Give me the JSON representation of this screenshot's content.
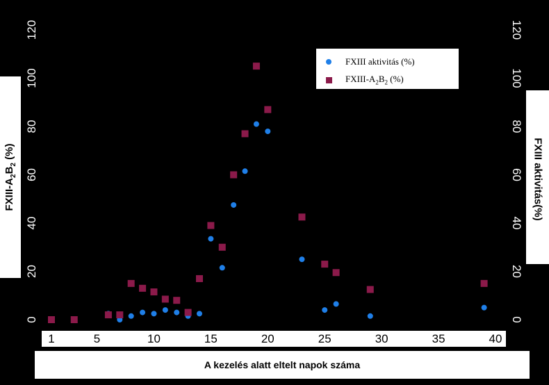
{
  "chart_data": {
    "type": "scatter",
    "title": "",
    "xlabel": "A kezelés alatt eltelt napok száma",
    "ylabel_left": {
      "main": "FXIII-A",
      "sub1": "2",
      "mid": "B",
      "sub2": "2",
      "end": " (%)"
    },
    "ylabel_right": "FXIII aktivitás(%)",
    "x_ticks": [
      "1",
      "5",
      "10",
      "15",
      "20",
      "25",
      "30",
      "35",
      "40"
    ],
    "x_tick_values": [
      1,
      5,
      10,
      15,
      20,
      25,
      30,
      35,
      40
    ],
    "xlim": [
      0,
      41
    ],
    "y_ticks": [
      "0",
      "20",
      "40",
      "60",
      "80",
      "100",
      "120"
    ],
    "y_tick_values": [
      0,
      20,
      40,
      60,
      80,
      100,
      120
    ],
    "ylim": [
      0,
      120
    ],
    "legend_position": "top-right",
    "series": [
      {
        "name": "FXIII aktivitás (%)",
        "marker": "circle",
        "color": "#1f7fe8",
        "points": [
          [
            6,
            2.5
          ],
          [
            7,
            0
          ],
          [
            8,
            1.5
          ],
          [
            9,
            3
          ],
          [
            10,
            2.5
          ],
          [
            11,
            4
          ],
          [
            12,
            3
          ],
          [
            13,
            1.5
          ],
          [
            14,
            2.5
          ],
          [
            15,
            33.5
          ],
          [
            16,
            21.5
          ],
          [
            17,
            47.5
          ],
          [
            18,
            61.5
          ],
          [
            19,
            81
          ],
          [
            20,
            78
          ],
          [
            23,
            25
          ],
          [
            25,
            4
          ],
          [
            26,
            6.5
          ],
          [
            29,
            1.5
          ],
          [
            39,
            5
          ]
        ]
      },
      {
        "name": "FXIII-A2B2 (%)",
        "marker": "square",
        "color": "#8b1a4a",
        "points": [
          [
            1,
            0
          ],
          [
            3,
            0
          ],
          [
            6,
            2
          ],
          [
            7,
            2
          ],
          [
            8,
            15
          ],
          [
            9,
            13
          ],
          [
            10,
            11.5
          ],
          [
            11,
            8.5
          ],
          [
            12,
            8
          ],
          [
            13,
            3
          ],
          [
            14,
            17
          ],
          [
            15,
            39
          ],
          [
            16,
            30
          ],
          [
            17,
            60
          ],
          [
            18,
            77
          ],
          [
            19,
            105
          ],
          [
            20,
            87
          ],
          [
            23,
            42.5
          ],
          [
            25,
            23
          ],
          [
            26,
            19.5
          ],
          [
            29,
            12.5
          ],
          [
            39,
            15
          ]
        ]
      }
    ]
  },
  "legend": {
    "item1": "FXIII aktivitás (%)",
    "item2_main": "FXIII-A",
    "item2_sub1": "2",
    "item2_mid": "B",
    "item2_sub2": "2",
    "item2_end": " (%)"
  }
}
